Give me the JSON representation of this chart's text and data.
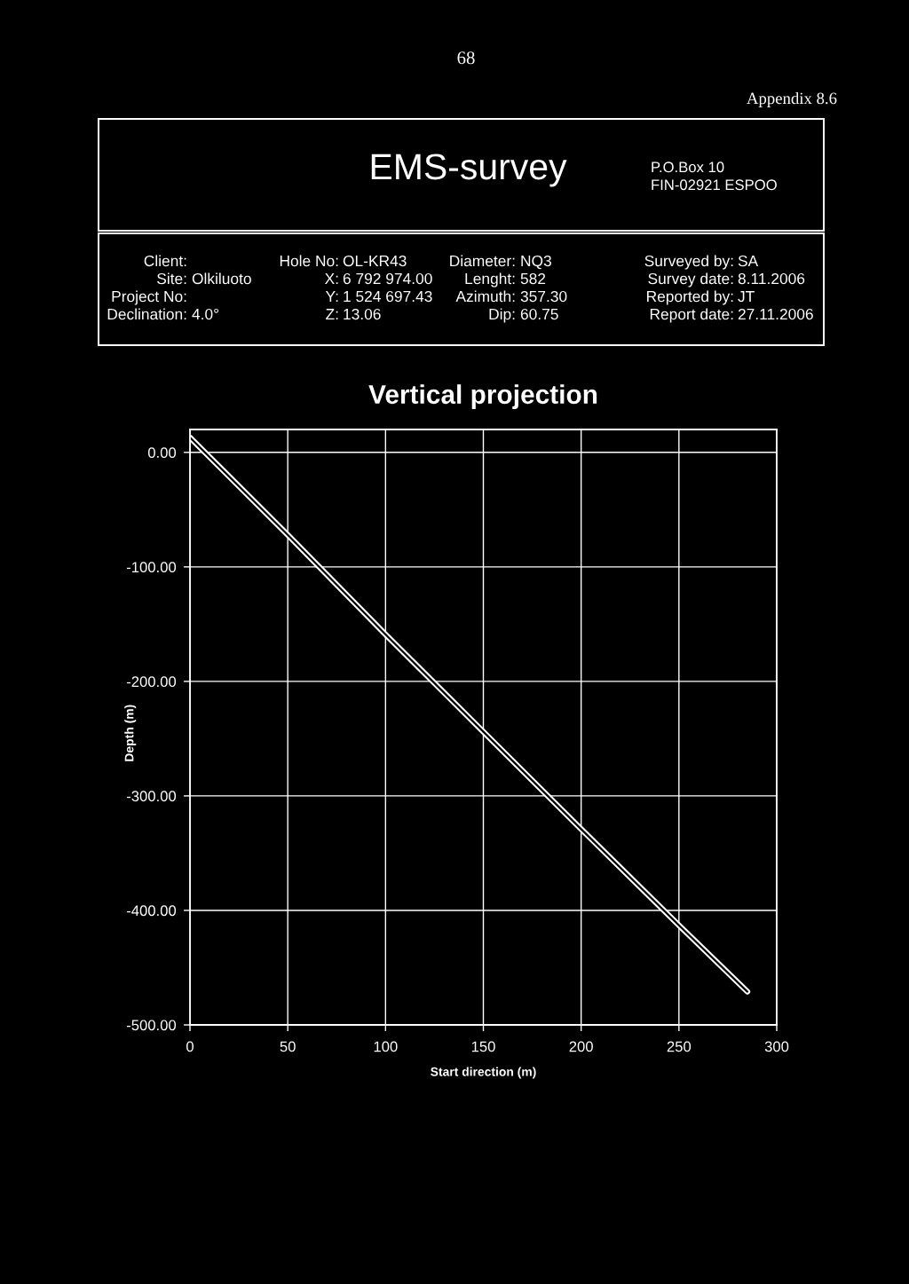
{
  "chart_data": {
    "type": "line",
    "title": "Vertical projection",
    "xlabel": "Start direction (m)",
    "ylabel": "Depth (m)",
    "x": [
      0,
      50,
      100,
      150,
      200,
      250,
      285
    ],
    "values": [
      13,
      -72,
      -159,
      -244,
      -329,
      -413,
      -471
    ],
    "color": "#ffffff",
    "xlim": [
      0,
      300
    ],
    "xticks": [
      0,
      50,
      100,
      150,
      200,
      250,
      300
    ],
    "ylim": [
      -500,
      20
    ],
    "yticks": [
      {
        "value": 0,
        "label": "0.00"
      },
      {
        "value": -100,
        "label": "-100.00"
      },
      {
        "value": -200,
        "label": "-200.00"
      },
      {
        "value": -300,
        "label": "-300.00"
      },
      {
        "value": -400,
        "label": "-400.00"
      },
      {
        "value": -500,
        "label": "-500.00"
      }
    ],
    "grid": true,
    "annotations": [
      "68",
      "Appendix 8.6",
      "EMS-survey",
      "P.O.Box 10",
      "FIN-02921 ESPOO",
      "Client:",
      "Site:",
      "Olkiluoto",
      "Project No:",
      "Declination:",
      "4.0°",
      "Hole No:",
      "OL-KR43",
      "X:",
      "6 792 974.00",
      "Y:",
      "1 524 697.43",
      "Z:",
      "13.06",
      "Diameter:",
      "NQ3",
      "Lenght:",
      "582",
      "Azimuth:",
      "357.30",
      "Dip:",
      "60.75",
      "Surveyed by:",
      "SA",
      "Survey date:",
      "8.11.2006",
      "Reported by:",
      "JT",
      "Report date:",
      "27.11.2006"
    ]
  }
}
